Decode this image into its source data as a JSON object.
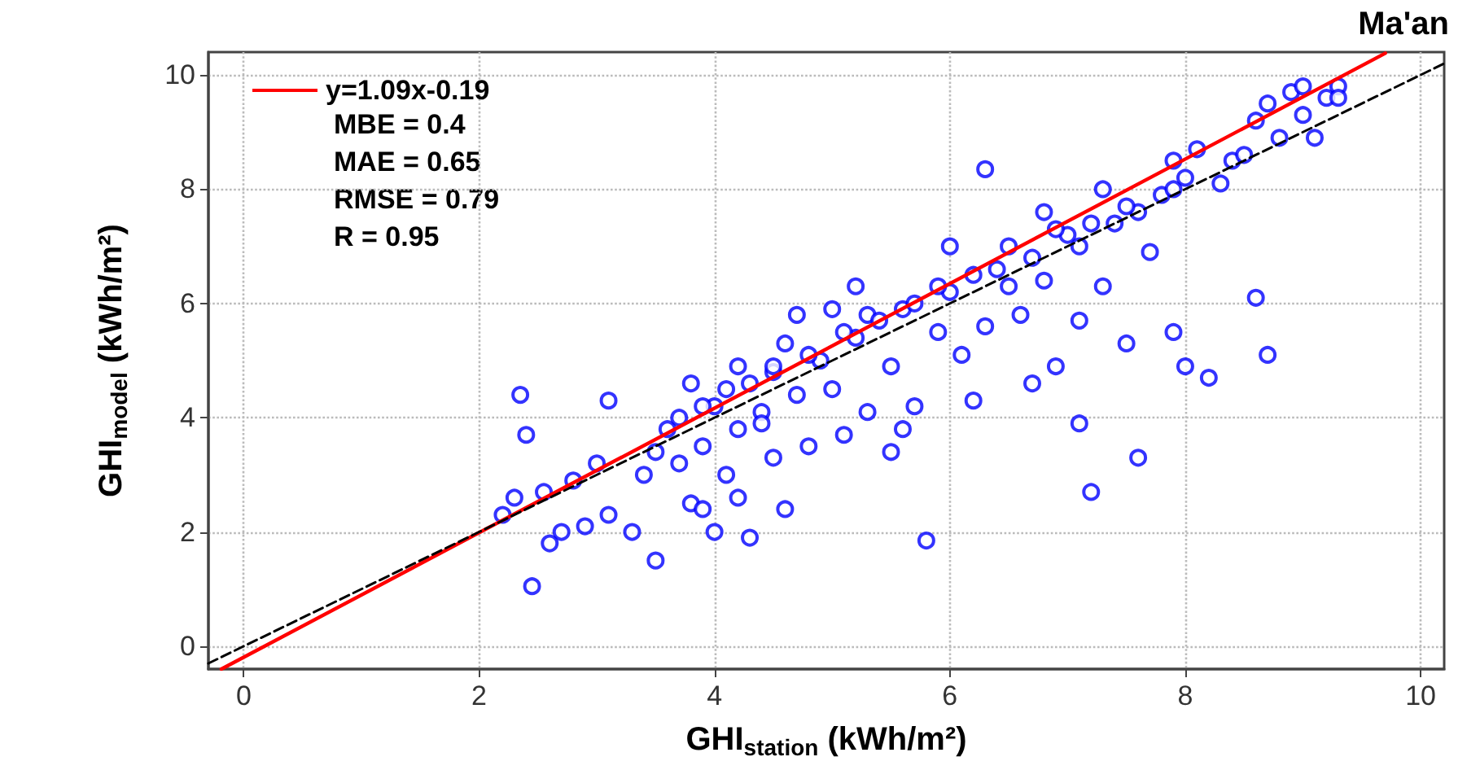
{
  "chart_data": {
    "type": "scatter",
    "title": "Ma'an",
    "xlabel": "GHI$_{station}$ (kWh/m²)",
    "ylabel": "GHI$_{model}$ (kWh/m²)",
    "annotations": [
      "MBE = 0.4",
      "MAE = 0.65",
      "RMSE = 0.79",
      "R = 0.95"
    ],
    "xlim": [
      -0.3,
      10.2
    ],
    "ylim": [
      -0.4,
      10.4
    ],
    "xticks": [
      0,
      2,
      4,
      6,
      8,
      10
    ],
    "yticks": [
      0,
      2,
      4,
      6,
      8,
      10
    ],
    "grid": true,
    "legend": "top left",
    "marker": "circle",
    "series": [
      {
        "color": "#0000ff",
        "x": [
          2.2,
          2.3,
          2.35,
          2.4,
          2.45,
          2.55,
          2.6,
          2.7,
          2.8,
          2.9,
          3.0,
          3.1,
          3.1,
          3.3,
          3.4,
          3.5,
          3.5,
          3.6,
          3.7,
          3.8,
          3.9,
          3.9,
          4.0,
          4.0,
          4.1,
          4.2,
          4.2,
          4.3,
          4.4,
          4.5,
          4.5,
          4.6,
          4.7,
          4.8,
          4.9,
          5.0,
          5.1,
          5.2,
          5.3,
          5.3,
          5.5,
          5.5,
          5.6,
          5.7,
          5.8,
          5.9,
          6.0,
          6.1,
          6.2,
          6.3,
          6.3,
          6.4,
          6.5,
          6.6,
          6.7,
          6.8,
          6.9,
          7.0,
          7.1,
          7.1,
          7.2,
          7.3,
          7.4,
          7.5,
          7.6,
          7.6,
          7.7,
          7.8,
          7.9,
          8.0,
          8.0,
          8.2,
          8.4,
          8.6,
          8.7,
          8.8,
          9.0,
          9.2,
          9.3,
          9.1,
          8.5,
          8.3,
          7.9,
          7.5,
          7.2,
          6.9,
          6.7,
          6.2,
          5.9,
          5.6,
          5.4,
          5.1,
          4.8,
          4.5,
          4.3,
          4.1,
          3.9,
          3.7,
          4.2,
          4.6,
          5.0,
          5.7,
          6.0,
          6.8,
          7.3,
          8.1,
          8.9,
          9.3,
          8.6,
          7.9,
          7.1,
          6.5,
          5.2,
          4.7,
          4.4,
          3.8,
          8.7,
          9.0
        ],
        "values": [
          2.3,
          2.6,
          4.4,
          3.7,
          1.05,
          2.7,
          1.8,
          2.0,
          2.9,
          2.1,
          3.2,
          2.3,
          4.3,
          2.0,
          3.0,
          3.4,
          1.5,
          3.8,
          3.2,
          2.5,
          2.4,
          3.5,
          4.2,
          2.0,
          3.0,
          3.8,
          2.6,
          1.9,
          4.1,
          3.3,
          4.8,
          2.4,
          4.4,
          3.5,
          5.0,
          4.5,
          3.7,
          5.4,
          4.1,
          5.8,
          4.9,
          3.4,
          3.8,
          4.2,
          1.85,
          5.5,
          6.2,
          5.1,
          4.3,
          8.35,
          5.6,
          6.6,
          7.0,
          5.8,
          4.6,
          6.4,
          4.9,
          7.2,
          5.7,
          3.9,
          2.7,
          6.3,
          7.4,
          5.3,
          3.3,
          7.6,
          6.9,
          7.9,
          5.5,
          8.2,
          4.9,
          4.7,
          8.5,
          6.1,
          5.1,
          8.9,
          9.3,
          9.6,
          9.8,
          8.9,
          8.6,
          8.1,
          8.0,
          7.7,
          7.4,
          7.3,
          6.8,
          6.5,
          6.3,
          5.9,
          5.7,
          5.5,
          5.1,
          4.9,
          4.6,
          4.5,
          4.2,
          4.0,
          4.9,
          5.3,
          5.9,
          6.0,
          7.0,
          7.6,
          8.0,
          8.7,
          9.7,
          9.6,
          9.2,
          8.5,
          7.0,
          6.3,
          6.3,
          5.8,
          3.9,
          4.6,
          9.5,
          9.8
        ]
      },
      {
        "type": "line",
        "name": "y=1.09x-0.19",
        "color": "#ff0000",
        "line_style": "solid",
        "marker": "none",
        "x": [
          -0.19,
          9.7
        ],
        "values": [
          -0.4,
          10.38
        ]
      },
      {
        "type": "line",
        "color": "#000000",
        "line_style": "dashed",
        "marker": "none",
        "x": [
          -0.3,
          10.2
        ],
        "values": [
          -0.3,
          10.2
        ]
      }
    ]
  }
}
